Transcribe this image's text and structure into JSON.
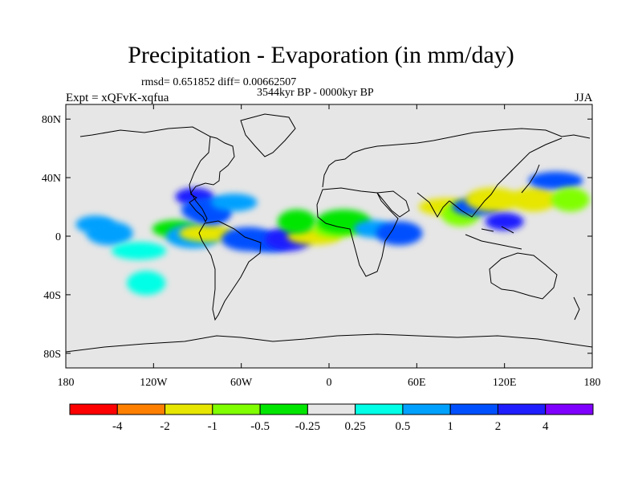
{
  "title": "Precipitation - Evaporation (in mm/day)",
  "stats": "rmsd= 0.651852 diff= 0.00662507",
  "period": "3544kyr BP - 0000kyr BP",
  "experiment": "Expt = xQFvK-xqfua",
  "season": "JJA",
  "axes": {
    "x_ticks": [
      {
        "value": -180,
        "label": "180"
      },
      {
        "value": -120,
        "label": "120W"
      },
      {
        "value": -60,
        "label": "60W"
      },
      {
        "value": 0,
        "label": "0"
      },
      {
        "value": 60,
        "label": "60E"
      },
      {
        "value": 120,
        "label": "120E"
      },
      {
        "value": 180,
        "label": "180"
      }
    ],
    "y_ticks": [
      {
        "value": 80,
        "label": "80N"
      },
      {
        "value": 40,
        "label": "40N"
      },
      {
        "value": 0,
        "label": "0"
      },
      {
        "value": -40,
        "label": "40S"
      },
      {
        "value": -80,
        "label": "80S"
      }
    ],
    "lon_range": [
      -180,
      180
    ],
    "lat_range": [
      -90,
      90
    ]
  },
  "colorbar": {
    "colors": [
      "#ff0000",
      "#ff8000",
      "#e6e600",
      "#80ff00",
      "#00e600",
      "#e6e6e6",
      "#00ffe6",
      "#00a0ff",
      "#0050ff",
      "#1e1eff",
      "#8000ff"
    ],
    "labels": [
      "-4",
      "-2",
      "-1",
      "-0.5",
      "-0.25",
      "0.25",
      "0.5",
      "1",
      "2",
      "4"
    ]
  },
  "chart_data": {
    "type": "heatmap",
    "map_type": "global filled contour anomaly map",
    "variable": "Precipitation - Evaporation",
    "units": "mm/day",
    "levels": [
      -4,
      -2,
      -1,
      -0.5,
      -0.25,
      0.25,
      0.5,
      1,
      2,
      4
    ],
    "missing_color": "#e6e6e6",
    "features": [
      {
        "lon": -160,
        "lat": 8,
        "value": 0.6
      },
      {
        "lon": -150,
        "lat": 2,
        "value": 0.6
      },
      {
        "lon": -130,
        "lat": -10,
        "value": 0.35
      },
      {
        "lon": -125,
        "lat": -32,
        "value": 0.35
      },
      {
        "lon": -105,
        "lat": 5,
        "value": -0.35
      },
      {
        "lon": -93,
        "lat": 0,
        "value": 0.6
      },
      {
        "lon": -92,
        "lat": 27,
        "value": 2.0
      },
      {
        "lon": -85,
        "lat": 18,
        "value": 1.0
      },
      {
        "lon": -84,
        "lat": 2,
        "value": -2.0
      },
      {
        "lon": -80,
        "lat": 16,
        "value": 1.5
      },
      {
        "lon": -65,
        "lat": 23,
        "value": 0.6
      },
      {
        "lon": -55,
        "lat": -2,
        "value": 1.0
      },
      {
        "lon": -40,
        "lat": -5,
        "value": 1.3
      },
      {
        "lon": -28,
        "lat": -2,
        "value": 2.0
      },
      {
        "lon": -10,
        "lat": 0,
        "value": -2.0
      },
      {
        "lon": -22,
        "lat": 10,
        "value": -0.35
      },
      {
        "lon": 5,
        "lat": 5,
        "value": -0.7
      },
      {
        "lon": 10,
        "lat": 10,
        "value": -0.35
      },
      {
        "lon": 30,
        "lat": 5,
        "value": 0.6
      },
      {
        "lon": 48,
        "lat": 2,
        "value": 1.3
      },
      {
        "lon": 80,
        "lat": 20,
        "value": -2.0
      },
      {
        "lon": 90,
        "lat": 15,
        "value": -0.7
      },
      {
        "lon": 100,
        "lat": 20,
        "value": 1.2
      },
      {
        "lon": 112,
        "lat": 25,
        "value": -1.5
      },
      {
        "lon": 120,
        "lat": 10,
        "value": 2.0
      },
      {
        "lon": 140,
        "lat": 25,
        "value": -1.2
      },
      {
        "lon": 155,
        "lat": 38,
        "value": 1.0
      },
      {
        "lon": 165,
        "lat": 25,
        "value": -0.7
      }
    ]
  }
}
